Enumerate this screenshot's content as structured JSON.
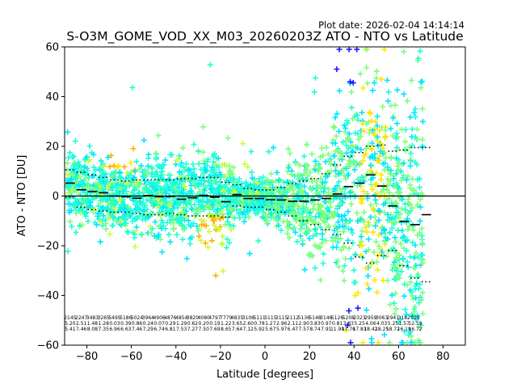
{
  "plot_date": "Plot date: 2026-02-04 14:14:14",
  "chart_data": {
    "type": "scatter",
    "title": "S-O3M_GOME_VOD_XX_M03_20260203Z ATO - NTO vs Latitude",
    "xlabel": "Latitude [degrees]",
    "ylabel": "ATO - NTO [DU]",
    "xlim": [
      -90,
      90
    ],
    "ylim": [
      -60,
      60
    ],
    "xticks": [
      -80,
      -60,
      -40,
      -20,
      0,
      20,
      40,
      60,
      80
    ],
    "yticks": [
      -60,
      -40,
      -20,
      0,
      20,
      40,
      60
    ],
    "xtick_labels": [
      "−80",
      "−60",
      "−40",
      "−20",
      "0",
      "20",
      "40",
      "60",
      "80"
    ],
    "ytick_labels": [
      "−60",
      "−40",
      "−20",
      "0",
      "20",
      "40",
      "60"
    ],
    "grid": false,
    "colors": {
      "cyan": "#00e5ff",
      "aquamarine": "#1effd6",
      "light_green": "#7cff7a",
      "yellow_green": "#c6ff3a",
      "yellow": "#ffe600",
      "orange": "#ffb300",
      "blue": "#1a1aff",
      "dodger": "#1f8fff"
    },
    "zero_line": 0,
    "bin_centers": [
      -87.5,
      -82.5,
      -77.5,
      -72.5,
      -67.5,
      -62.5,
      -57.5,
      -52.5,
      -47.5,
      -42.5,
      -37.5,
      -32.5,
      -27.5,
      -22.5,
      -17.5,
      -12.5,
      -7.5,
      -2.5,
      2.5,
      7.5,
      12.5,
      17.5,
      22.5,
      27.5,
      32.5,
      37.5,
      42.5,
      47.5,
      52.5,
      57.5,
      62.5,
      67.5,
      72.5
    ],
    "bin_means": [
      5.2,
      2.5,
      1.8,
      1.3,
      0.0,
      -0.3,
      -0.9,
      0.2,
      -0.3,
      -0.2,
      -1.3,
      -0.7,
      0.2,
      -0.5,
      -2.3,
      0.6,
      -1.0,
      -1.0,
      -1.5,
      -1.6,
      -2.1,
      -2.1,
      -1.6,
      -1.0,
      0.8,
      3.8,
      5.2,
      8.5,
      4.0,
      -4.0,
      -10.2,
      -11.5,
      -7.5
    ],
    "bin_upper": [
      10.5,
      9.5,
      8.5,
      7.5,
      6.5,
      6.0,
      6.5,
      6.5,
      6.5,
      6.5,
      7.0,
      7.0,
      7.5,
      7.5,
      5.5,
      4.5,
      3.0,
      2.5,
      2.5,
      3.5,
      5.0,
      6.0,
      7.0,
      9.0,
      12.5,
      16.0,
      17.5,
      20.0,
      20.5,
      18.0,
      18.5,
      19.5,
      19.5
    ],
    "bin_lower": [
      -0.5,
      -4.5,
      -5.5,
      -6.0,
      -6.5,
      -6.5,
      -7.0,
      -7.5,
      -7.5,
      -7.0,
      -7.5,
      -8.0,
      -8.0,
      -8.0,
      -8.5,
      -4.0,
      -4.5,
      -4.5,
      -5.5,
      -6.5,
      -8.0,
      -10.0,
      -11.5,
      -13.5,
      -15.5,
      -19.0,
      -24.5,
      -27.0,
      -24.0,
      -22.0,
      -28.0,
      -33.0,
      -34.5
    ],
    "stats_row1": [
      "2145",
      "2247",
      "3483",
      "3265",
      "5495",
      "5186",
      "5024",
      "3964",
      "4906",
      "4876",
      "4854",
      "3820",
      "4080",
      "4797",
      "7779",
      "4835",
      "3106",
      "5111",
      "5115",
      "3115",
      "2112",
      "5136",
      "5148",
      "3146",
      "5126",
      "5208",
      "2323",
      "2959",
      "3063",
      "2941",
      "3182",
      "029",
      ""
    ],
    "stats_row2": [
      "5.20",
      "2.51",
      "1.48",
      "1.28",
      "0.03",
      "0.39",
      "0.86",
      "0.24",
      "0.07",
      "0.29",
      "1.29",
      "0.62",
      "0.20",
      "0.19",
      "1.22",
      "3.65",
      "2.60",
      "0.78",
      "1.27",
      "2.96",
      "2.11",
      "2.90",
      "3.83",
      "0.97",
      "0.81",
      "3.83",
      "5.25",
      "4.06",
      "4.03",
      "5.25",
      "1.57",
      "12.59",
      ""
    ],
    "stats_row3": [
      "5.41",
      "7.46",
      "8.08",
      "7.35",
      "6.96",
      "6.63",
      "7.46",
      "7.29",
      "6.74",
      "6.81",
      "7.53",
      "7.27",
      "7.50",
      "7.69",
      "8.65",
      "7.64",
      "7.12",
      "5.92",
      "5.67",
      "5.97",
      "6.47",
      "7.57",
      "8.74",
      "7.91",
      "11.90",
      "17.76",
      "17.83",
      "18.42",
      "18.25",
      "18.72",
      "16.18",
      "16.72",
      ""
    ]
  }
}
